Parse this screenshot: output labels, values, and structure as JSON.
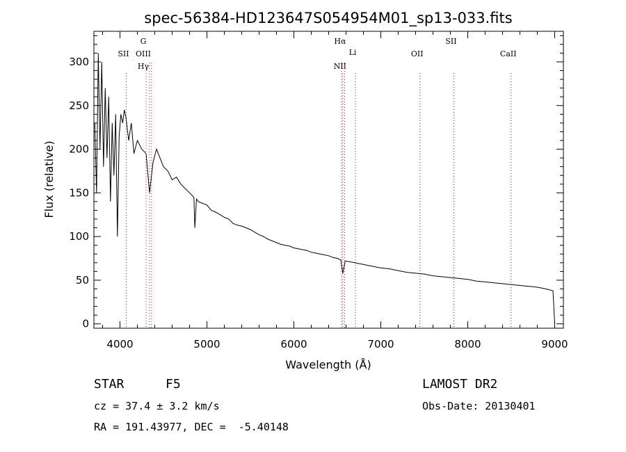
{
  "chart_data": {
    "type": "line",
    "title": "spec-56384-HD123647S054954M01_sp13-033.fits",
    "xlabel": "Wavelength (Å)",
    "ylabel": "Flux (relative)",
    "xlim": [
      3700,
      9100
    ],
    "ylim": [
      -5,
      335
    ],
    "x_ticks": [
      4000,
      5000,
      6000,
      7000,
      8000,
      9000
    ],
    "y_ticks": [
      0,
      50,
      100,
      150,
      200,
      250,
      300
    ],
    "grid": false,
    "line_color": "#000000",
    "marker_color": "#cc0000",
    "spectrum": {
      "x": [
        3710,
        3730,
        3750,
        3770,
        3790,
        3810,
        3830,
        3850,
        3870,
        3890,
        3910,
        3930,
        3950,
        3970,
        3990,
        4010,
        4030,
        4050,
        4070,
        4100,
        4130,
        4160,
        4200,
        4250,
        4300,
        4340,
        4380,
        4420,
        4460,
        4500,
        4550,
        4600,
        4650,
        4700,
        4750,
        4800,
        4850,
        4861,
        4880,
        4900,
        4950,
        5000,
        5050,
        5100,
        5150,
        5200,
        5250,
        5300,
        5350,
        5400,
        5450,
        5500,
        5550,
        5600,
        5650,
        5700,
        5750,
        5800,
        5850,
        5900,
        5950,
        6000,
        6050,
        6100,
        6150,
        6200,
        6250,
        6300,
        6350,
        6400,
        6450,
        6500,
        6540,
        6563,
        6590,
        6650,
        6700,
        6750,
        6800,
        6850,
        6900,
        6950,
        7000,
        7100,
        7200,
        7300,
        7400,
        7500,
        7600,
        7700,
        7800,
        7900,
        8000,
        8100,
        8200,
        8300,
        8400,
        8500,
        8600,
        8700,
        8800,
        8900,
        8980,
        8995,
        9000
      ],
      "y": [
        230,
        150,
        310,
        200,
        300,
        180,
        270,
        190,
        260,
        140,
        230,
        170,
        240,
        100,
        215,
        240,
        230,
        245,
        235,
        210,
        230,
        195,
        210,
        200,
        195,
        150,
        185,
        200,
        190,
        180,
        175,
        165,
        168,
        160,
        155,
        150,
        145,
        110,
        143,
        140,
        138,
        136,
        130,
        128,
        125,
        122,
        120,
        115,
        113,
        112,
        110,
        108,
        105,
        102,
        100,
        97,
        95,
        93,
        91,
        90,
        89,
        87,
        86,
        85,
        84,
        82,
        81,
        80,
        79,
        78,
        76,
        75,
        73,
        58,
        72,
        71,
        70,
        69,
        68,
        67,
        66,
        65,
        64,
        63,
        61,
        59,
        58,
        57,
        55,
        54,
        53,
        52,
        51,
        49,
        48,
        47,
        46,
        45,
        44,
        43,
        42,
        40,
        38,
        10,
        0
      ]
    },
    "line_markers": [
      {
        "x": 4072,
        "labels": [
          "SII"
        ]
      },
      {
        "x": 4300,
        "labels": [
          "G",
          "OIII",
          "Hγ"
        ]
      },
      {
        "x": 4340,
        "labels": []
      },
      {
        "x": 4363,
        "labels": []
      },
      {
        "x": 6548,
        "labels": []
      },
      {
        "x": 6563,
        "labels": [
          "Hα",
          "NII"
        ]
      },
      {
        "x": 6584,
        "labels": []
      },
      {
        "x": 6708,
        "labels": [
          "Li"
        ]
      },
      {
        "x": 7450,
        "labels": [
          "OII"
        ]
      },
      {
        "x": 7840,
        "labels": [
          "SII"
        ]
      },
      {
        "x": 8498,
        "labels": [
          "CaII"
        ]
      }
    ]
  },
  "info": {
    "object_class": "STAR",
    "subclass": "F5",
    "cz": "cz = 37.4 ± 3.2 km/s",
    "coords": "RA = 191.43977, DEC =  -5.40148",
    "survey": "LAMOST DR2",
    "obs_date": "Obs-Date: 20130401"
  }
}
